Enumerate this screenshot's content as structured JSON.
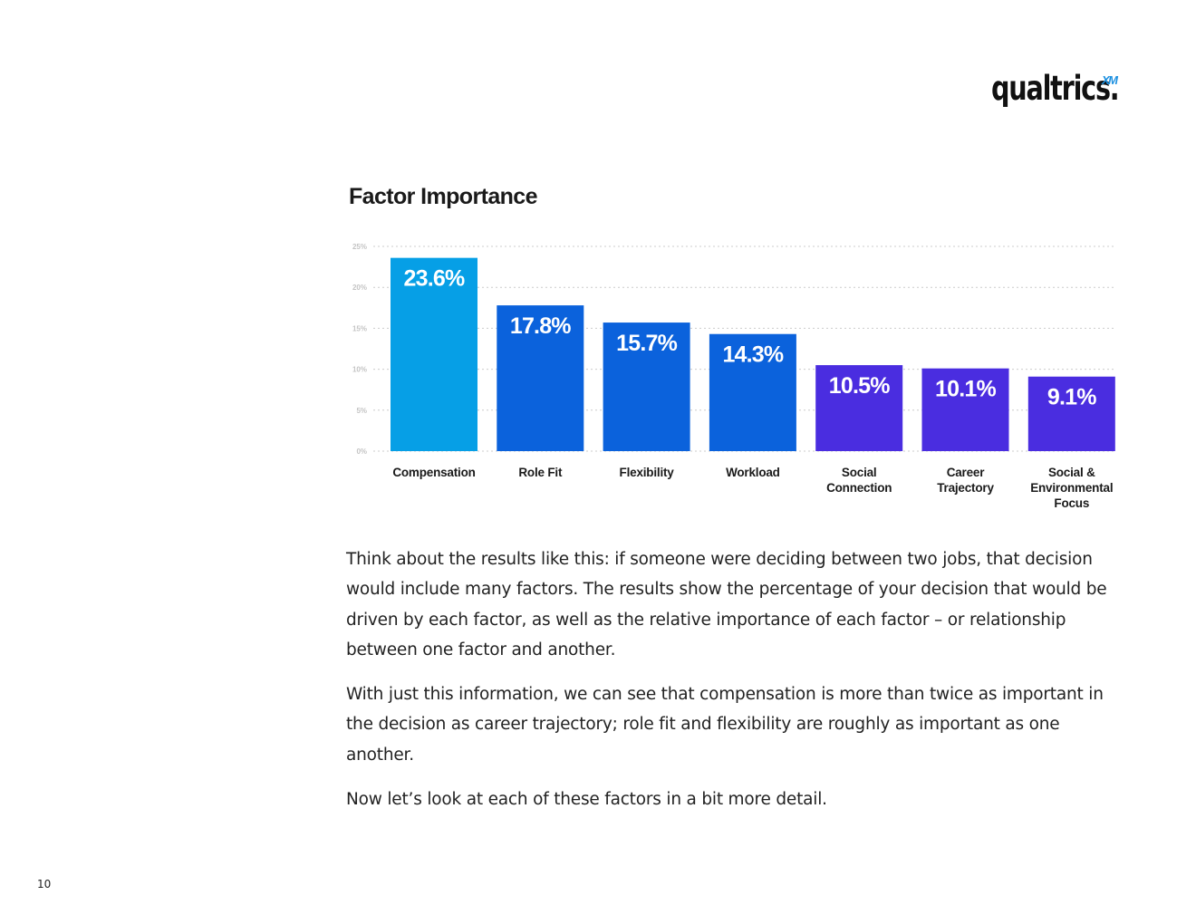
{
  "logo": {
    "word": "qualtrics.",
    "suffix": "XM"
  },
  "colors": {
    "light_blue": "#069fe6",
    "mid_blue": "#0b62dc",
    "purple": "#4a2de0",
    "label_white": "#ffffff",
    "grid": "#cccccc"
  },
  "chart_data": {
    "type": "bar",
    "title": "Factor Importance",
    "categories": [
      [
        "Compensation"
      ],
      [
        "Role Fit"
      ],
      [
        "Flexibility"
      ],
      [
        "Workload"
      ],
      [
        "Social",
        "Connection"
      ],
      [
        "Career",
        "Trajectory"
      ],
      [
        "Social &",
        "Environmental",
        "Focus"
      ]
    ],
    "values": [
      23.6,
      17.8,
      15.7,
      14.3,
      10.5,
      10.1,
      9.1
    ],
    "value_labels": [
      "23.6%",
      "17.8%",
      "15.7%",
      "14.3%",
      "10.5%",
      "10.1%",
      "9.1%"
    ],
    "bar_colors": [
      "#069fe6",
      "#0b62dc",
      "#0b62dc",
      "#0b62dc",
      "#4a2de0",
      "#4a2de0",
      "#4a2de0"
    ],
    "y_ticks": [
      0,
      5,
      10,
      15,
      20,
      25
    ],
    "y_tick_labels": [
      "0%",
      "5%",
      "10%",
      "15%",
      "20%",
      "25%"
    ],
    "ylim": [
      0,
      25
    ],
    "grid": true,
    "gridline_style": "dotted",
    "xlabel": "",
    "ylabel": ""
  },
  "body": {
    "paragraph_1": "Think about the results like this: if someone were deciding between two jobs, that decision would include many factors. The results show the percentage of your decision that would be driven by each factor, as well as the relative importance of each factor – or relationship between one factor and another.",
    "paragraph_2": "With just this information, we can see that compensation is more than twice as important in the decision as career trajectory; role fit and flexibility are roughly as important as one another.",
    "paragraph_3": "Now let’s look at each of these factors in a bit more detail."
  },
  "page_number": "10"
}
